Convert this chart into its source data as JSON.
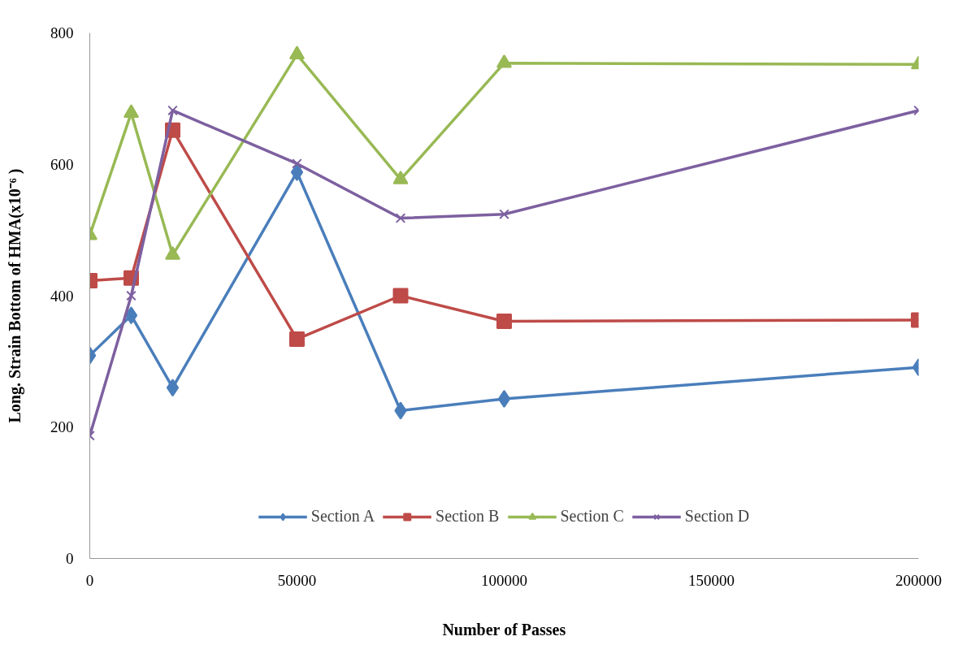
{
  "chart_data": {
    "type": "line",
    "xlabel": "Number of Passes",
    "ylabel": "Long. Strain Bottom of HMA(x10⁻⁶ )",
    "x": [
      0,
      10000,
      20000,
      50000,
      75000,
      100000,
      200000
    ],
    "xlim": [
      0,
      200000
    ],
    "xticks": [
      0,
      50000,
      100000,
      150000,
      200000
    ],
    "ylim": [
      0,
      800
    ],
    "yticks": [
      0,
      200,
      400,
      600,
      800
    ],
    "grid": false,
    "legend": "bottom",
    "line_style": "solid",
    "series": [
      {
        "name": "Section A",
        "color": "#4a7ebb",
        "marker": "diamond",
        "values": [
          309,
          370,
          260,
          588,
          225,
          243,
          291
        ]
      },
      {
        "name": "Section B",
        "color": "#be4b48",
        "marker": "square",
        "values": [
          423,
          427,
          652,
          334,
          400,
          361,
          363
        ]
      },
      {
        "name": "Section C",
        "color": "#98b954",
        "marker": "triangle",
        "values": [
          492,
          678,
          462,
          767,
          577,
          754,
          752
        ]
      },
      {
        "name": "Section D",
        "color": "#7d60a0",
        "marker": "cross",
        "values": [
          187,
          400,
          682,
          601,
          518,
          524,
          682
        ]
      }
    ]
  }
}
